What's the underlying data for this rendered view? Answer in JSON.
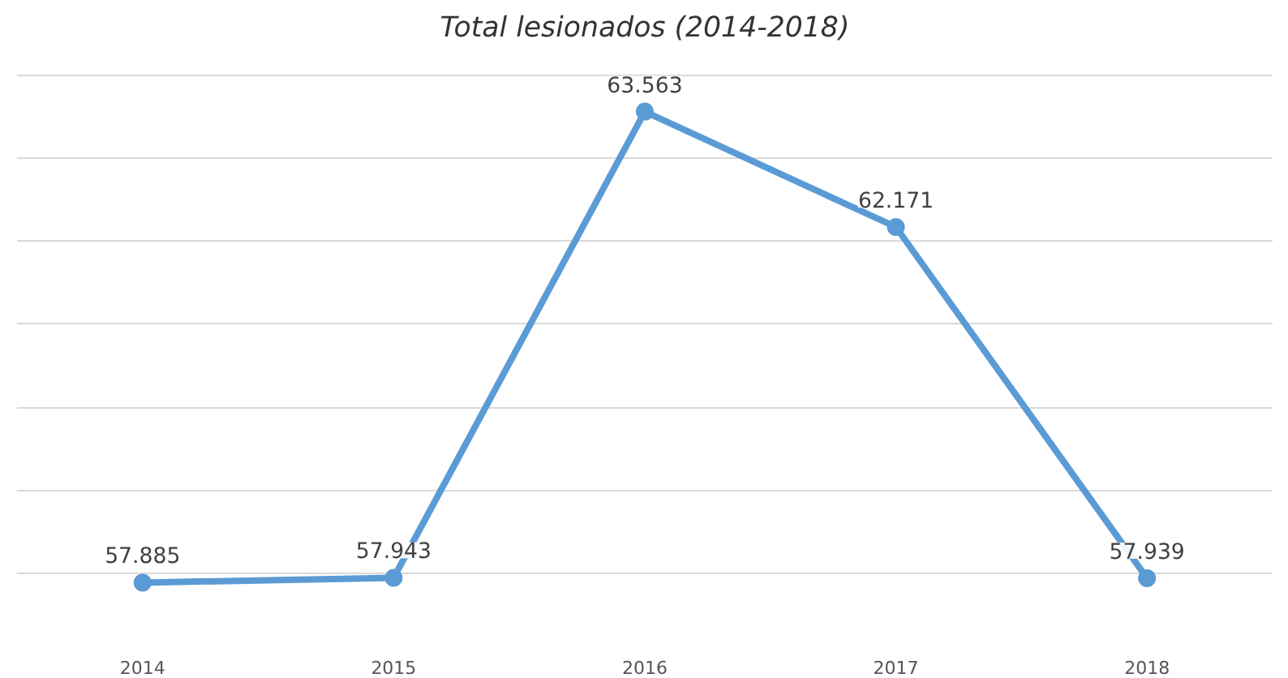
{
  "chart_data": {
    "type": "line",
    "title": "Total lesionados (2014-2018)",
    "categories": [
      "2014",
      "2015",
      "2016",
      "2017",
      "2018"
    ],
    "values": [
      57885,
      57943,
      63563,
      62171,
      57939
    ],
    "value_labels": [
      "57.885",
      "57.943",
      "63.563",
      "62.171",
      "57.939"
    ],
    "color": "#5b9bd5",
    "marker": "circle",
    "line_style": "solid",
    "tick_labels": "x",
    "grid": "y"
  }
}
